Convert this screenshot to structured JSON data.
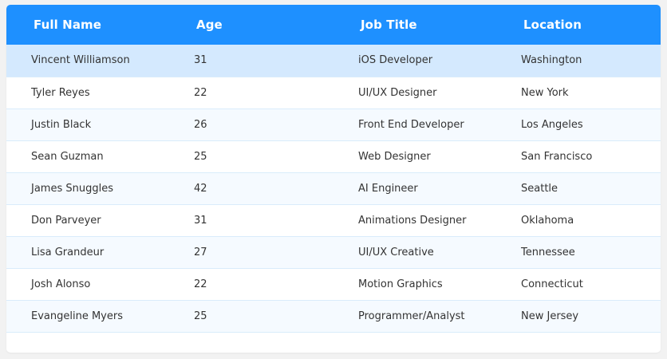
{
  "colors": {
    "header": "#1e90ff",
    "row_highlight": "#d4e9fe",
    "row_alt": "#f5faff",
    "row_border": "#d9ecfb"
  },
  "table": {
    "headers": [
      "Full Name",
      "Age",
      "Job Title",
      "Location"
    ],
    "rows": [
      [
        "Vincent Williamson",
        "31",
        "iOS Developer",
        "Washington"
      ],
      [
        "Tyler Reyes",
        "22",
        "UI/UX Designer",
        "New York"
      ],
      [
        "Justin Black",
        "26",
        "Front End Developer",
        "Los Angeles"
      ],
      [
        "Sean Guzman",
        "25",
        "Web Designer",
        "San Francisco"
      ],
      [
        "James Snuggles",
        "42",
        "AI Engineer",
        "Seattle"
      ],
      [
        "Don Parveyer",
        "31",
        "Animations Designer",
        "Oklahoma"
      ],
      [
        "Lisa Grandeur",
        "27",
        "UI/UX Creative",
        "Tennessee"
      ],
      [
        "Josh Alonso",
        "22",
        "Motion Graphics",
        "Connecticut"
      ],
      [
        "Evangeline Myers",
        "25",
        "Programmer/Analyst",
        "New Jersey"
      ]
    ]
  }
}
